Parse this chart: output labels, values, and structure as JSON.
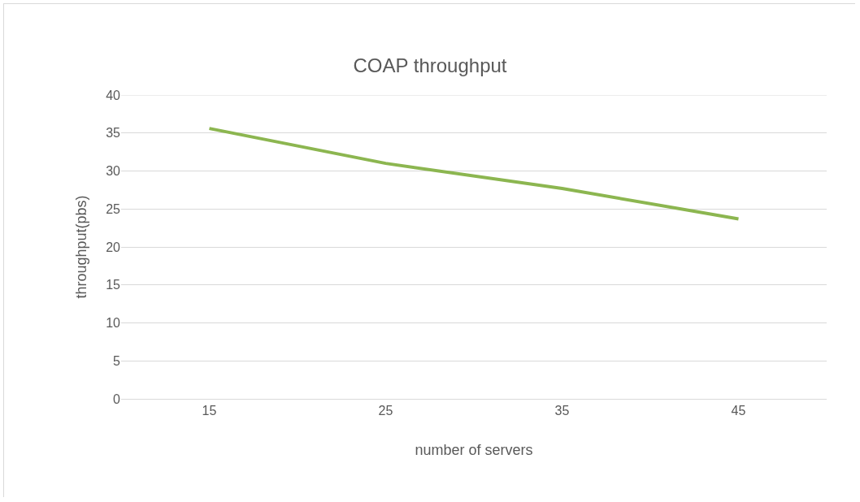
{
  "chart_data": {
    "type": "line",
    "title": "COAP throughput",
    "xlabel": "number of servers",
    "ylabel": "throughput(pbs)",
    "categories": [
      "15",
      "25",
      "35",
      "45"
    ],
    "series": [
      {
        "color": "#8cb650",
        "values": [
          35.6,
          31.0,
          27.7,
          23.7
        ]
      }
    ],
    "ylim": [
      0,
      40
    ],
    "yticks": [
      0,
      5,
      10,
      15,
      20,
      25,
      30,
      35,
      40
    ],
    "grid": "y",
    "marker": "none",
    "line_style": "solid"
  }
}
